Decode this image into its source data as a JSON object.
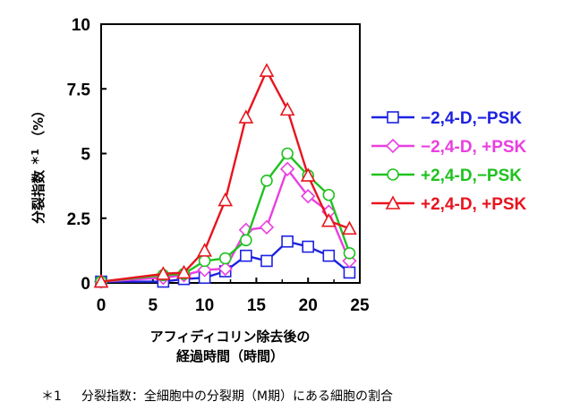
{
  "chart_data": {
    "type": "line",
    "ylabel_main": "分裂指数",
    "ylabel_mark": "＊1",
    "ylabel_unit": "（%）",
    "xlabel_line1": "アフィディコリン除去後の",
    "xlabel_line2": "経過時間（時間）",
    "xlim": [
      0,
      25
    ],
    "ylim": [
      0,
      10
    ],
    "x_ticks": [
      "0",
      "5",
      "10",
      "15",
      "20",
      "25"
    ],
    "y_ticks": [
      "0",
      "2.5",
      "5",
      "7.5",
      "10"
    ],
    "x_tick_values": [
      0,
      5,
      10,
      15,
      20,
      25
    ],
    "y_tick_values": [
      0,
      2.5,
      5,
      7.5,
      10
    ],
    "grid": false,
    "legend_position": "right",
    "series": [
      {
        "name": "−2,4-D,−PSK",
        "color": "#1d22e0",
        "marker": "square",
        "x": [
          0,
          6,
          8,
          10,
          12,
          14,
          16,
          18,
          20,
          22,
          24
        ],
        "y": [
          0.05,
          0.05,
          0.15,
          0.2,
          0.45,
          1.05,
          0.85,
          1.6,
          1.4,
          1.05,
          0.4
        ]
      },
      {
        "name": "−2,4-D, +PSK",
        "color": "#ea3fe0",
        "marker": "diamond",
        "x": [
          0,
          6,
          8,
          10,
          12,
          14,
          16,
          18,
          20,
          22,
          24
        ],
        "y": [
          0.05,
          0.2,
          0.3,
          0.5,
          0.55,
          2.05,
          2.15,
          4.4,
          3.35,
          2.75,
          0.85
        ]
      },
      {
        "name": "+2,4-D,−PSK",
        "color": "#1fc21f",
        "marker": "circle",
        "x": [
          0,
          6,
          8,
          10,
          12,
          14,
          16,
          18,
          20,
          22,
          24
        ],
        "y": [
          0.05,
          0.3,
          0.35,
          0.85,
          0.95,
          1.65,
          3.95,
          5.0,
          4.15,
          3.4,
          1.15
        ]
      },
      {
        "name": "+2,4-D, +PSK",
        "color": "#e8141e",
        "marker": "triangle",
        "x": [
          0,
          6,
          8,
          10,
          12,
          14,
          16,
          18,
          20,
          22,
          24
        ],
        "y": [
          0.05,
          0.35,
          0.4,
          1.25,
          3.2,
          6.4,
          8.2,
          6.7,
          4.15,
          2.4,
          2.1
        ]
      }
    ]
  },
  "footnote": {
    "mark": "＊1",
    "text": "分裂指数：全細胞中の分裂期（M期）にある細胞の割合"
  }
}
